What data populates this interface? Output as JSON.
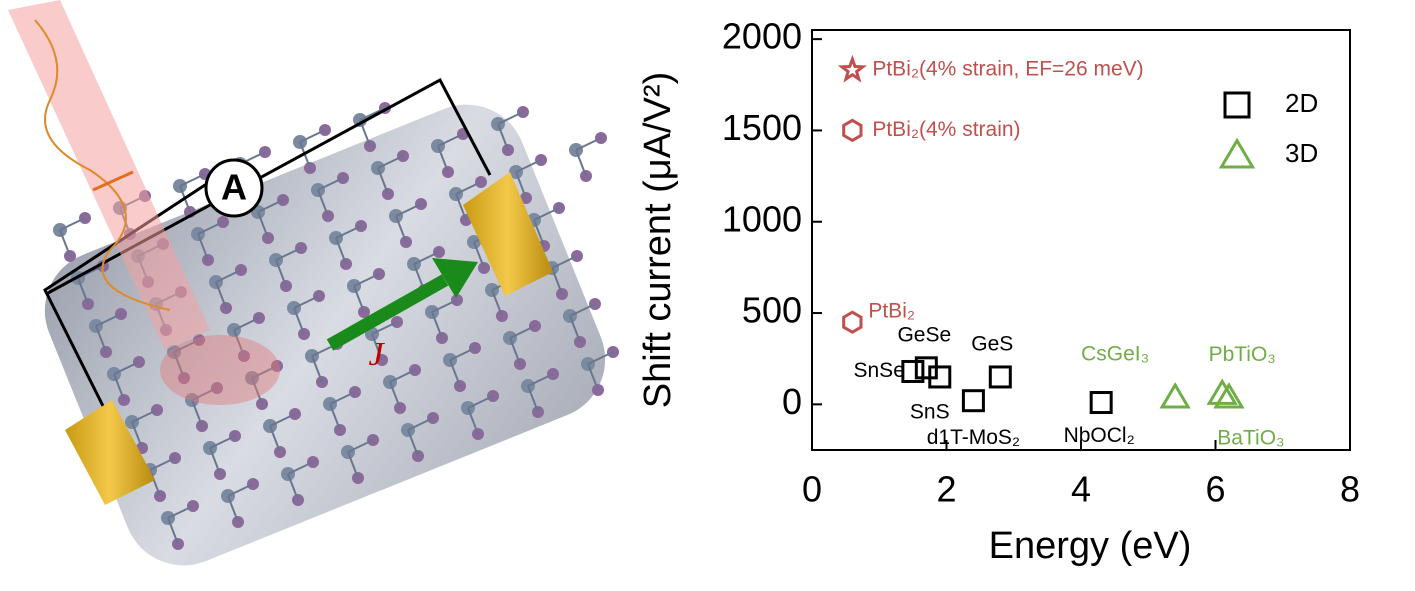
{
  "illustration": {
    "ammeter_label": "A",
    "current_label": "J"
  },
  "chart_data": {
    "type": "scatter",
    "x_label": "Energy (eV)",
    "y_label": "Shift current (μA/V²)",
    "xlim": [
      0,
      8
    ],
    "xticks": [
      0,
      2,
      4,
      6,
      8
    ],
    "ylim": [
      -250,
      2050
    ],
    "yticks": [
      0,
      500,
      1000,
      1500,
      2000
    ],
    "grid": false,
    "legend": "upper right",
    "series": [
      {
        "name": "2D",
        "color": "#000000",
        "marker": "square",
        "x": [
          1.5,
          1.7,
          1.9,
          2.4,
          2.8,
          4.3
        ],
        "values": [
          180,
          200,
          150,
          20,
          150,
          10
        ],
        "labels": [
          "SnSe",
          "GeSe",
          "SnS",
          "d1T-MoS₂",
          "GeS",
          "NbOCl₂"
        ]
      },
      {
        "name": "3D",
        "color": "#70ad47",
        "marker": "triangle",
        "x": [
          5.4,
          6.1,
          6.2
        ],
        "values": [
          40,
          60,
          40
        ],
        "labels": [
          "CsGeI₃",
          "PbTiO₃",
          "BaTiO₃"
        ]
      },
      {
        "color": "#c0504d",
        "marker": "hexagon",
        "x": [
          0.6,
          0.6
        ],
        "values": [
          450,
          1500
        ],
        "labels": [
          "PtBi₂",
          "PtBi₂(4% strain)"
        ]
      },
      {
        "color": "#c0504d",
        "marker": "star",
        "x": [
          0.6
        ],
        "values": [
          1830
        ],
        "labels": [
          "PtBi₂(4% strain, EF=26 meV)"
        ]
      }
    ]
  }
}
